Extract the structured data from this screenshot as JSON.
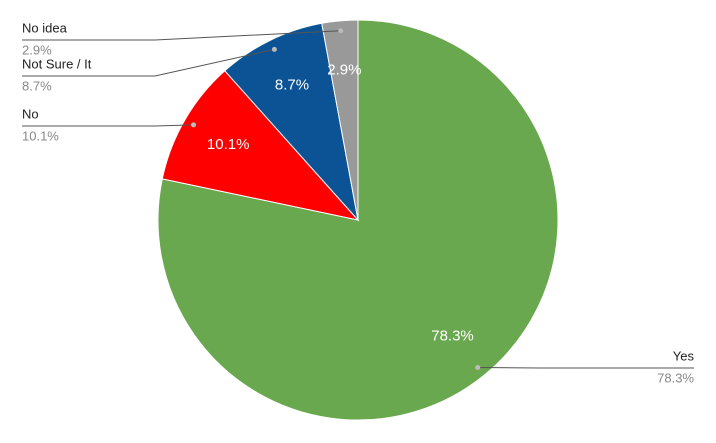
{
  "chart_data": {
    "type": "pie",
    "categories": [
      "Yes",
      "No",
      "Not Sure / It",
      "No idea"
    ],
    "values": [
      78.3,
      10.1,
      8.7,
      2.9
    ],
    "value_labels": [
      "78.3%",
      "10.1%",
      "8.7%",
      "2.9%"
    ],
    "colors": [
      "#6aa84f",
      "#ff0000",
      "#0b5394",
      "#999999"
    ]
  }
}
